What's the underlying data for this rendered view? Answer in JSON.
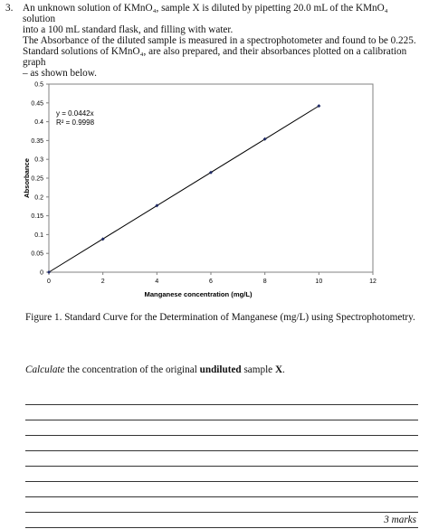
{
  "question": {
    "number": "3.",
    "intro_lines": [
      "An unknown solution of KMnO₄, sample X is diluted by pipetting 20.0 mL of the KMnO₄ solution",
      "into a 100 mL standard flask, and filling with water.",
      "The Absorbance of the diluted sample is measured in a spectrophotometer and found to be 0.225.",
      "Standard solutions of KMnO₄, are also prepared, and their absorbances plotted on a calibration graph",
      "– as shown below."
    ],
    "figure_caption": "Figure 1. Standard Curve for the Determination of Manganese (mg/L) using Spectrophotometry.",
    "instruction": {
      "verb": "Calculate",
      "middle": " the concentration of the original ",
      "emphasis": "undiluted",
      "end": " sample ",
      "sample": "X",
      "period": "."
    },
    "answer_line_count": 9,
    "marks": "3 marks"
  },
  "chart_data": {
    "type": "scatter",
    "xlabel": "Manganese concentration (mg/L)",
    "ylabel": "Absorbance",
    "x_ticks": [
      "0",
      "2",
      "4",
      "6",
      "8",
      "10",
      "12"
    ],
    "y_ticks": [
      "0",
      "0.05",
      "0.1",
      "0.15",
      "0.2",
      "0.25",
      "0.3",
      "0.35",
      "0.4",
      "0.45",
      "0.5"
    ],
    "xlim": [
      0,
      12
    ],
    "ylim": [
      0,
      0.5
    ],
    "points": [
      {
        "x": 0,
        "y": 0
      },
      {
        "x": 2,
        "y": 0.088
      },
      {
        "x": 4,
        "y": 0.177
      },
      {
        "x": 6,
        "y": 0.265
      },
      {
        "x": 8,
        "y": 0.354
      },
      {
        "x": 10,
        "y": 0.442
      }
    ],
    "trendline": {
      "slope": 0.0442,
      "intercept": 0,
      "x_range": [
        0,
        10
      ]
    },
    "equation": "y = 0.0442x",
    "r_squared": "R² = 0.9998",
    "grid": false,
    "legend": "none",
    "colors": {
      "line": "#000000",
      "marker": "#1f2a66",
      "frame": "#808080"
    }
  }
}
